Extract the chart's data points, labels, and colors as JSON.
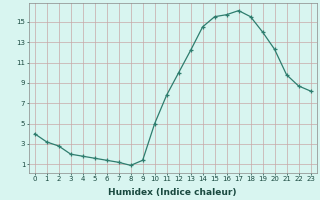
{
  "xlabel": "Humidex (Indice chaleur)",
  "ylabel": "",
  "x": [
    0,
    1,
    2,
    3,
    4,
    5,
    6,
    7,
    8,
    9,
    10,
    11,
    12,
    13,
    14,
    15,
    16,
    17,
    18,
    19,
    20,
    21,
    22,
    23
  ],
  "y": [
    4.0,
    3.2,
    2.8,
    2.0,
    1.8,
    1.6,
    1.4,
    1.2,
    0.9,
    1.4,
    5.0,
    7.8,
    10.0,
    12.2,
    14.5,
    15.5,
    15.7,
    16.1,
    15.5,
    14.0,
    12.3,
    9.8,
    8.7,
    8.2
  ],
  "line_color": "#2e7d6e",
  "marker": "+",
  "marker_size": 3,
  "marker_lw": 0.9,
  "line_width": 0.9,
  "bg_color": "#d8f5f0",
  "grid_color": "#c8a8a8",
  "yticks": [
    1,
    3,
    5,
    7,
    9,
    11,
    13,
    15
  ],
  "xticks": [
    0,
    1,
    2,
    3,
    4,
    5,
    6,
    7,
    8,
    9,
    10,
    11,
    12,
    13,
    14,
    15,
    16,
    17,
    18,
    19,
    20,
    21,
    22,
    23
  ],
  "ylim": [
    0.2,
    16.8
  ],
  "xlim": [
    -0.5,
    23.5
  ],
  "tick_fontsize": 5.0,
  "xlabel_fontsize": 6.5
}
